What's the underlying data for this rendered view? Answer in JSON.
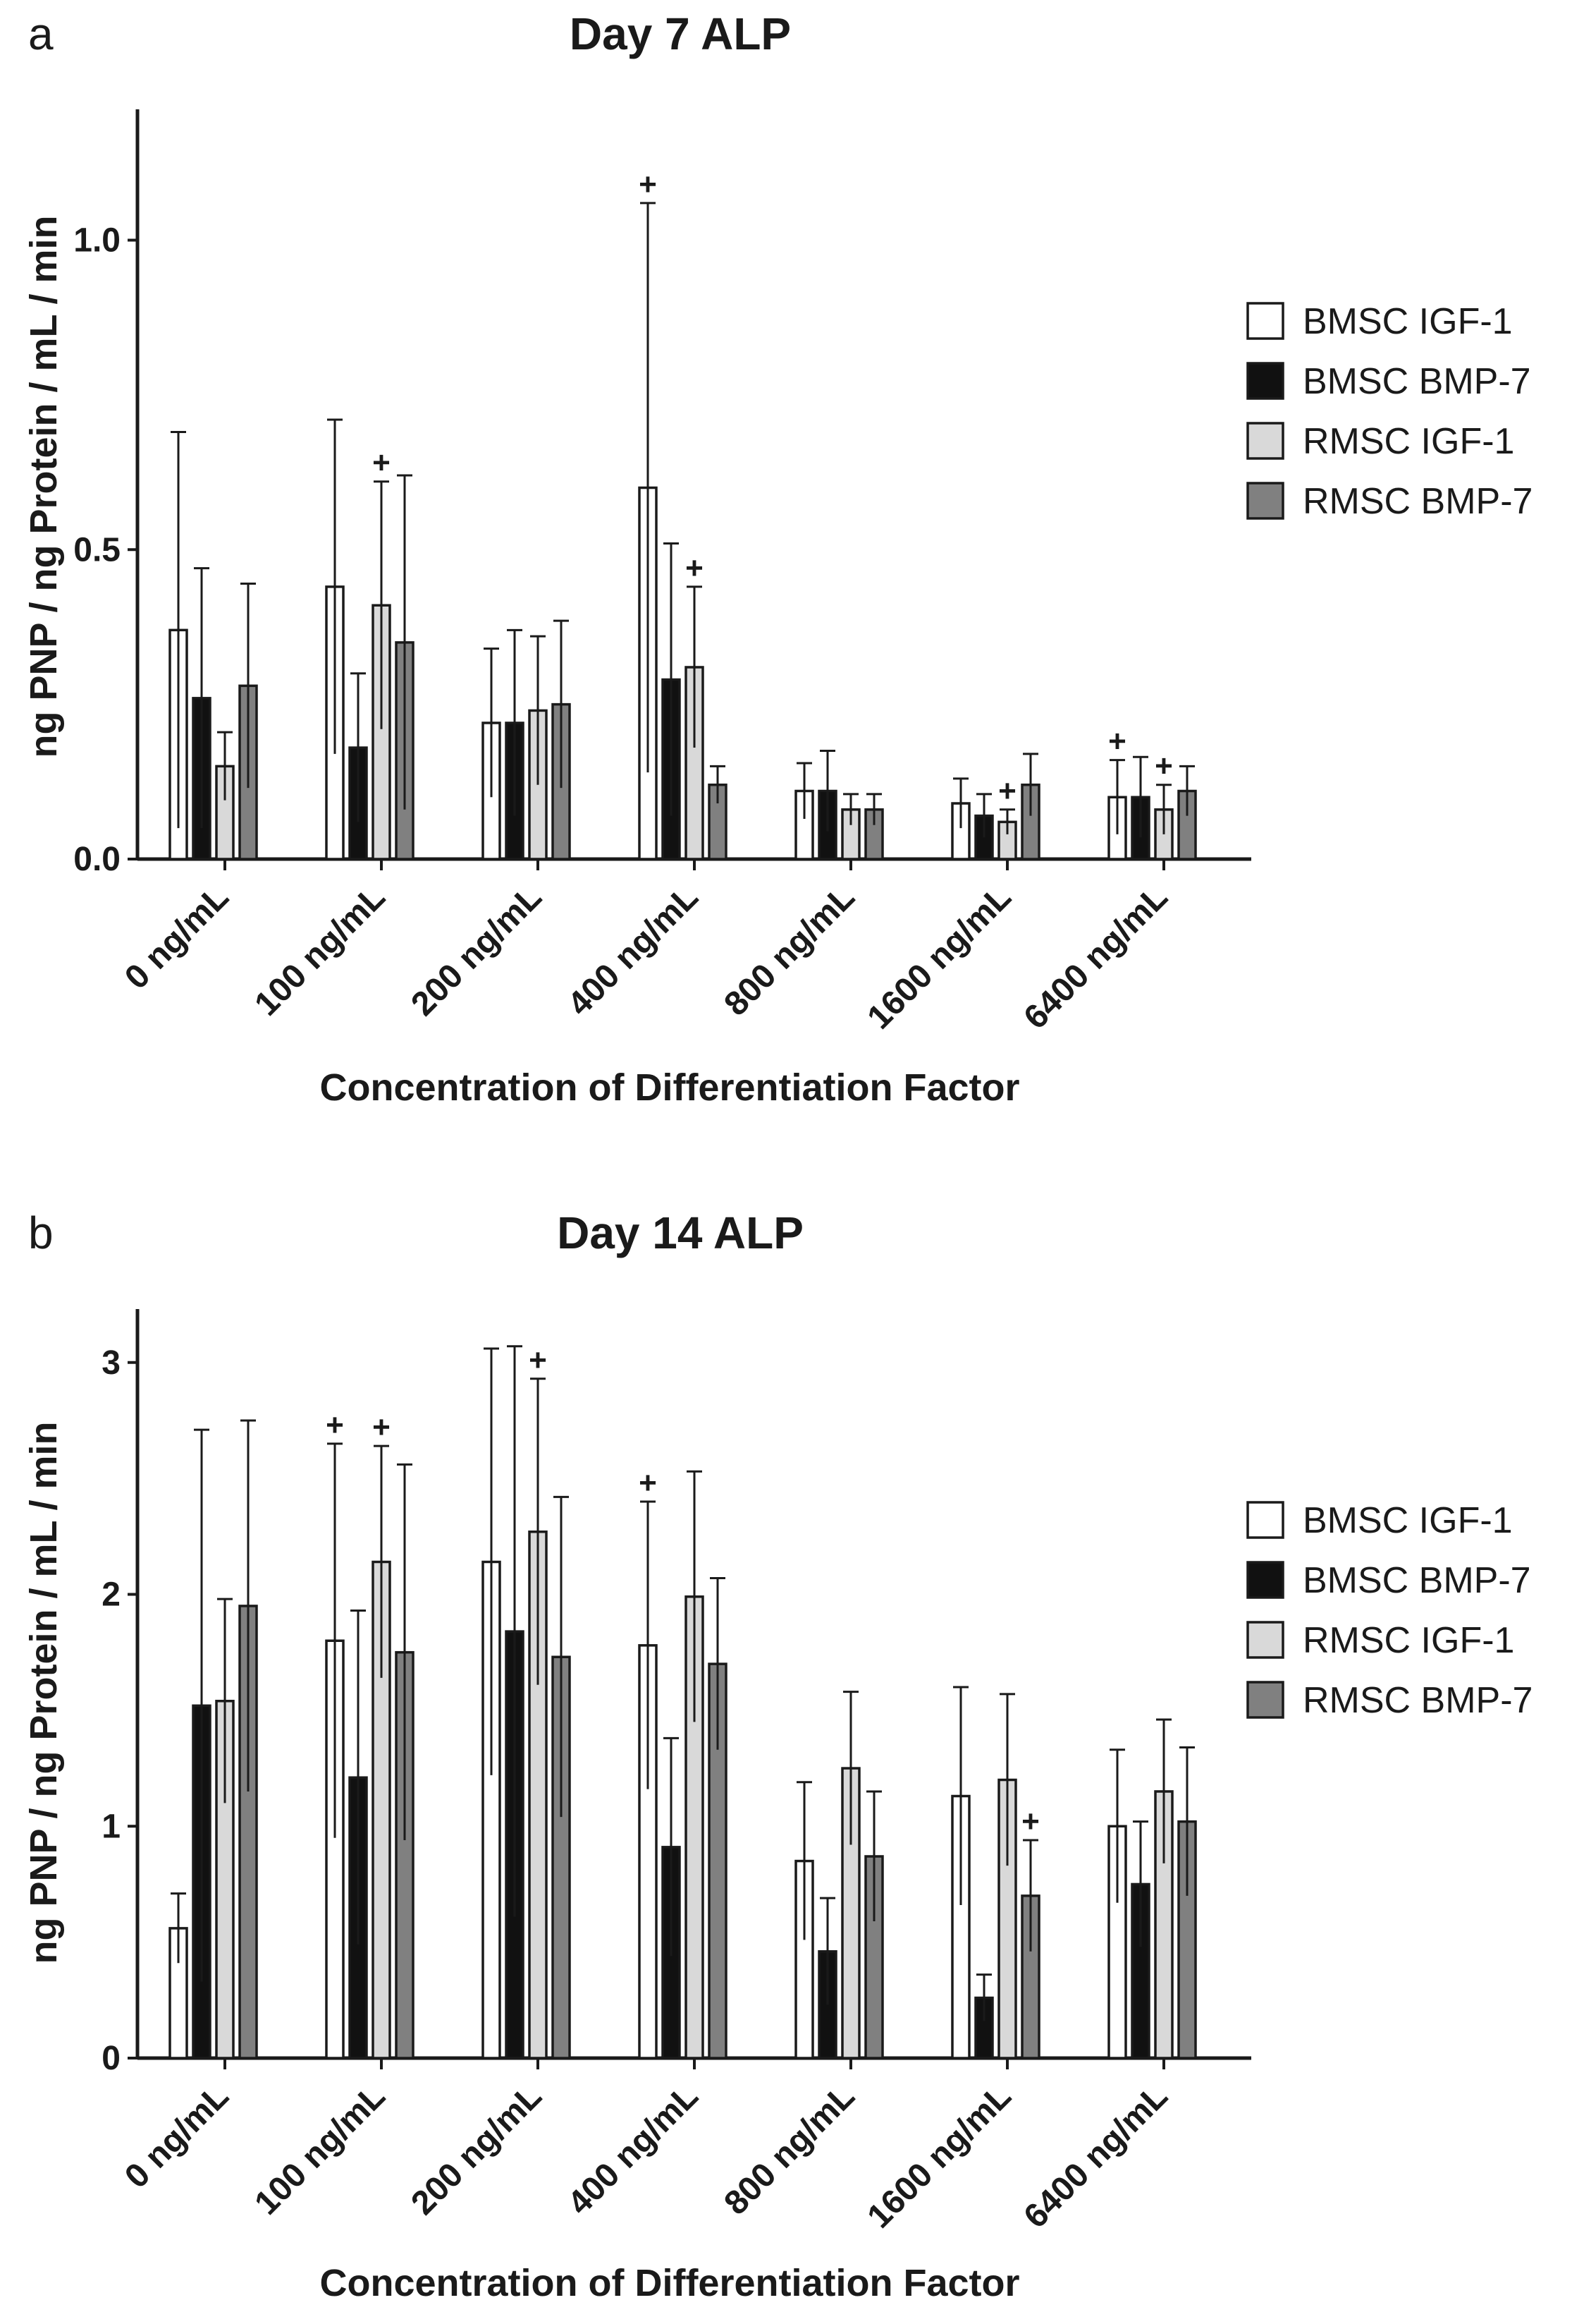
{
  "series_meta": [
    {
      "name": "BMSC IGF-1",
      "color": "#ffffff"
    },
    {
      "name": "BMSC BMP-7",
      "color": "#111111"
    },
    {
      "name": "RMSC IGF-1",
      "color": "#d9d9d9"
    },
    {
      "name": "RMSC BMP-7",
      "color": "#808080"
    }
  ],
  "chart_data": [
    {
      "panel": "a",
      "type": "bar",
      "title": "Day 7 ALP",
      "xlabel": "Concentration of Differentiation Factor",
      "ylabel": "ng PNP / ng Protein / mL / min",
      "ylim": [
        0,
        1.2
      ],
      "yticks": [
        0,
        0.5,
        1.0
      ],
      "ytick_labels": [
        "0.0",
        "0.5",
        "1.0"
      ],
      "categories": [
        "0 ng/mL",
        "100 ng/mL",
        "200 ng/mL",
        "400 ng/mL",
        "800 ng/mL",
        "1600 ng/mL",
        "6400 ng/mL"
      ],
      "series": [
        {
          "name": "BMSC IGF-1",
          "values": [
            0.37,
            0.44,
            0.22,
            0.6,
            0.11,
            0.09,
            0.1
          ],
          "errors": [
            0.32,
            0.27,
            0.12,
            0.46,
            0.045,
            0.04,
            0.06
          ],
          "marks": [
            false,
            false,
            false,
            true,
            false,
            false,
            true
          ]
        },
        {
          "name": "BMSC BMP-7",
          "values": [
            0.26,
            0.18,
            0.22,
            0.29,
            0.11,
            0.07,
            0.1
          ],
          "errors": [
            0.21,
            0.12,
            0.15,
            0.22,
            0.065,
            0.035,
            0.065
          ],
          "marks": [
            false,
            false,
            false,
            false,
            false,
            false,
            false
          ]
        },
        {
          "name": "RMSC IGF-1",
          "values": [
            0.15,
            0.41,
            0.24,
            0.31,
            0.08,
            0.06,
            0.08
          ],
          "errors": [
            0.055,
            0.2,
            0.12,
            0.13,
            0.025,
            0.02,
            0.04
          ],
          "marks": [
            false,
            true,
            false,
            true,
            false,
            true,
            true
          ]
        },
        {
          "name": "RMSC BMP-7",
          "values": [
            0.28,
            0.35,
            0.25,
            0.12,
            0.08,
            0.12,
            0.11
          ],
          "errors": [
            0.165,
            0.27,
            0.135,
            0.03,
            0.025,
            0.05,
            0.04
          ],
          "marks": [
            false,
            false,
            false,
            false,
            false,
            false,
            false
          ]
        }
      ],
      "mark_symbol": "+"
    },
    {
      "panel": "b",
      "type": "bar",
      "title": "Day 14 ALP",
      "xlabel": "Concentration of Differentiation Factor",
      "ylabel": "ng PNP / ng Protein / mL / min",
      "ylim": [
        0,
        3.2
      ],
      "yticks": [
        0,
        1,
        2,
        3
      ],
      "ytick_labels": [
        "0",
        "1",
        "2",
        "3"
      ],
      "categories": [
        "0 ng/mL",
        "100 ng/mL",
        "200 ng/mL",
        "400 ng/mL",
        "800 ng/mL",
        "1600 ng/mL",
        "6400 ng/mL"
      ],
      "series": [
        {
          "name": "BMSC IGF-1",
          "values": [
            0.56,
            1.8,
            2.14,
            1.78,
            0.85,
            1.13,
            1.0
          ],
          "errors": [
            0.15,
            0.85,
            0.92,
            0.62,
            0.34,
            0.47,
            0.33
          ],
          "marks": [
            false,
            true,
            false,
            true,
            false,
            false,
            false
          ]
        },
        {
          "name": "BMSC BMP-7",
          "values": [
            1.52,
            1.21,
            1.84,
            0.91,
            0.46,
            0.26,
            0.75
          ],
          "errors": [
            1.19,
            0.72,
            1.23,
            0.47,
            0.23,
            0.1,
            0.27
          ],
          "marks": [
            false,
            false,
            false,
            false,
            false,
            false,
            false
          ]
        },
        {
          "name": "RMSC IGF-1",
          "values": [
            1.54,
            2.14,
            2.27,
            1.99,
            1.25,
            1.2,
            1.15
          ],
          "errors": [
            0.44,
            0.5,
            0.66,
            0.54,
            0.33,
            0.37,
            0.31
          ],
          "marks": [
            false,
            true,
            true,
            false,
            false,
            false,
            false
          ]
        },
        {
          "name": "RMSC BMP-7",
          "values": [
            1.95,
            1.75,
            1.73,
            1.7,
            0.87,
            0.7,
            1.02
          ],
          "errors": [
            0.8,
            0.81,
            0.69,
            0.37,
            0.28,
            0.24,
            0.32
          ],
          "marks": [
            false,
            false,
            false,
            false,
            false,
            true,
            false
          ]
        }
      ],
      "mark_symbol": "+"
    }
  ]
}
